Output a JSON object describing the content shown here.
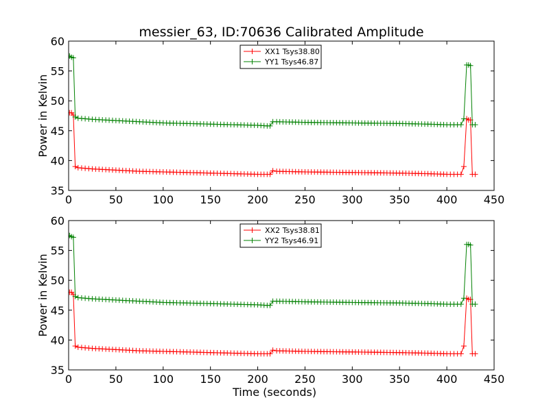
{
  "figure_title": "messier_63, ID:70636 Calibrated Amplitude",
  "chart_data": [
    {
      "type": "line",
      "title": "messier_63, ID:70636 Calibrated Amplitude",
      "xlabel": "",
      "ylabel": "Power in Kelvin",
      "xlim": [
        0,
        450
      ],
      "ylim": [
        35,
        60
      ],
      "xticks": [
        "0",
        "50",
        "100",
        "150",
        "200",
        "250",
        "300",
        "350",
        "400",
        "450"
      ],
      "yticks": [
        "35",
        "40",
        "45",
        "50",
        "55",
        "60"
      ],
      "legend_position": "top-center",
      "marker": "+",
      "series": [
        {
          "name": "XX1 Tsys38.80",
          "color": "#ff0000",
          "x": [
            1,
            3,
            5,
            7,
            10,
            25,
            50,
            75,
            100,
            125,
            150,
            175,
            200,
            210,
            213,
            216,
            220,
            250,
            300,
            350,
            380,
            400,
            415,
            418,
            421,
            423,
            425,
            427,
            430
          ],
          "y": [
            48.0,
            48.0,
            47.6,
            39.0,
            38.8,
            38.6,
            38.4,
            38.2,
            38.1,
            38.0,
            37.9,
            37.8,
            37.7,
            37.7,
            37.7,
            38.3,
            38.2,
            38.1,
            38.0,
            37.9,
            37.8,
            37.7,
            37.7,
            39.0,
            47.0,
            46.8,
            46.8,
            37.7,
            37.7
          ]
        },
        {
          "name": "YY1 Tsys46.87",
          "color": "#008000",
          "x": [
            1,
            3,
            5,
            7,
            10,
            25,
            50,
            75,
            100,
            125,
            150,
            175,
            200,
            210,
            213,
            216,
            220,
            250,
            300,
            350,
            380,
            400,
            415,
            418,
            421,
            423,
            425,
            427,
            430
          ],
          "y": [
            57.5,
            57.3,
            57.2,
            47.3,
            47.1,
            46.9,
            46.7,
            46.5,
            46.3,
            46.2,
            46.1,
            46.0,
            45.9,
            45.8,
            45.8,
            46.5,
            46.5,
            46.4,
            46.3,
            46.2,
            46.1,
            46.0,
            46.0,
            47.0,
            56.0,
            56.0,
            55.9,
            46.0,
            46.0
          ]
        }
      ]
    },
    {
      "type": "line",
      "title": "",
      "xlabel": "Time (seconds)",
      "ylabel": "Power in Kelvin",
      "xlim": [
        0,
        450
      ],
      "ylim": [
        35,
        60
      ],
      "xticks": [
        "0",
        "50",
        "100",
        "150",
        "200",
        "250",
        "300",
        "350",
        "400",
        "450"
      ],
      "yticks": [
        "35",
        "40",
        "45",
        "50",
        "55",
        "60"
      ],
      "legend_position": "top-center",
      "marker": "+",
      "series": [
        {
          "name": "XX2 Tsys38.81",
          "color": "#ff0000",
          "x": [
            1,
            3,
            5,
            7,
            10,
            25,
            50,
            75,
            100,
            125,
            150,
            175,
            200,
            210,
            213,
            216,
            220,
            250,
            300,
            350,
            380,
            400,
            415,
            418,
            421,
            423,
            425,
            427,
            430
          ],
          "y": [
            48.0,
            48.0,
            47.6,
            39.0,
            38.8,
            38.6,
            38.4,
            38.2,
            38.1,
            38.0,
            37.9,
            37.8,
            37.7,
            37.7,
            37.7,
            38.3,
            38.2,
            38.1,
            38.0,
            37.9,
            37.8,
            37.7,
            37.7,
            39.0,
            47.0,
            46.8,
            46.8,
            37.7,
            37.7
          ]
        },
        {
          "name": "YY2 Tsys46.91",
          "color": "#008000",
          "x": [
            1,
            3,
            5,
            7,
            10,
            25,
            50,
            75,
            100,
            125,
            150,
            175,
            200,
            210,
            213,
            216,
            220,
            250,
            300,
            350,
            380,
            400,
            415,
            418,
            421,
            423,
            425,
            427,
            430
          ],
          "y": [
            57.5,
            57.3,
            57.2,
            47.3,
            47.1,
            46.9,
            46.7,
            46.5,
            46.3,
            46.2,
            46.1,
            46.0,
            45.9,
            45.8,
            45.8,
            46.5,
            46.5,
            46.4,
            46.3,
            46.2,
            46.1,
            46.0,
            46.0,
            47.0,
            56.0,
            56.0,
            55.9,
            46.0,
            46.0
          ]
        }
      ]
    }
  ]
}
